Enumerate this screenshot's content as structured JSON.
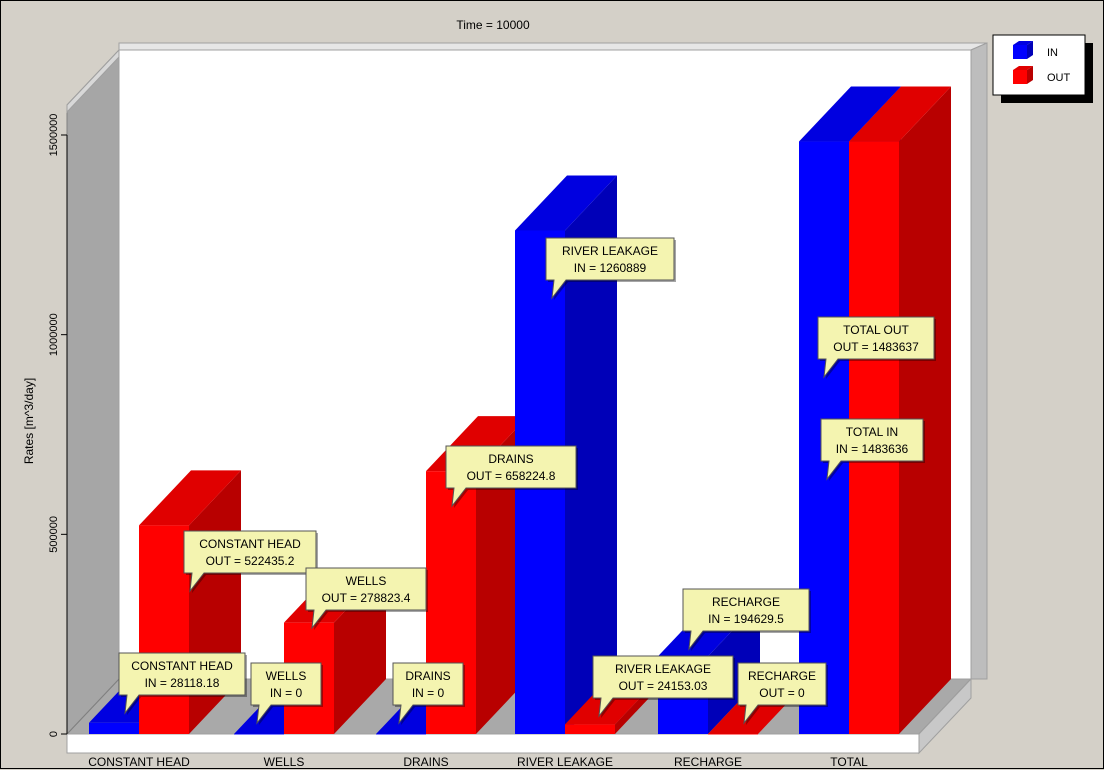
{
  "chart_data": {
    "type": "bar",
    "title": "Time = 10000",
    "xlabel": "",
    "ylabel": "Rates [m^3/day]",
    "ylim": [
      0,
      1500000
    ],
    "yticks": [
      "0",
      "500000",
      "1000000",
      "1500000"
    ],
    "categories": [
      "CONSTANT HEAD",
      "WELLS",
      "DRAINS",
      "RIVER LEAKAGE",
      "RECHARGE",
      "TOTAL"
    ],
    "series": [
      {
        "name": "IN",
        "color": "#0000ff",
        "values": [
          28118.18,
          0,
          0,
          1260889,
          194629.5,
          1483636
        ]
      },
      {
        "name": "OUT",
        "color": "#ff0000",
        "values": [
          522435.2,
          278823.4,
          658224.8,
          24153.03,
          0,
          1483637
        ]
      }
    ],
    "annotations": [
      {
        "category": "CONSTANT HEAD",
        "series": "IN",
        "line1": "CONSTANT HEAD",
        "line2": "IN = 28118.18"
      },
      {
        "category": "CONSTANT HEAD",
        "series": "OUT",
        "line1": "CONSTANT HEAD",
        "line2": "OUT = 522435.2"
      },
      {
        "category": "WELLS",
        "series": "IN",
        "line1": "WELLS",
        "line2": "IN = 0"
      },
      {
        "category": "WELLS",
        "series": "OUT",
        "line1": "WELLS",
        "line2": "OUT = 278823.4"
      },
      {
        "category": "DRAINS",
        "series": "IN",
        "line1": "DRAINS",
        "line2": "IN = 0"
      },
      {
        "category": "DRAINS",
        "series": "OUT",
        "line1": "DRAINS",
        "line2": "OUT = 658224.8"
      },
      {
        "category": "RIVER LEAKAGE",
        "series": "IN",
        "line1": "RIVER LEAKAGE",
        "line2": "IN = 1260889"
      },
      {
        "category": "RIVER LEAKAGE",
        "series": "OUT",
        "line1": "RIVER LEAKAGE",
        "line2": "OUT = 24153.03"
      },
      {
        "category": "RECHARGE",
        "series": "IN",
        "line1": "RECHARGE",
        "line2": "IN = 194629.5"
      },
      {
        "category": "RECHARGE",
        "series": "OUT",
        "line1": "RECHARGE",
        "line2": "OUT = 0"
      },
      {
        "category": "TOTAL",
        "series": "IN",
        "line1": "TOTAL IN",
        "line2": "IN = 1483636"
      },
      {
        "category": "TOTAL",
        "series": "OUT",
        "line1": "TOTAL OUT",
        "line2": "OUT = 1483637"
      }
    ],
    "legend": {
      "placement": "top-right"
    },
    "grid": false
  }
}
